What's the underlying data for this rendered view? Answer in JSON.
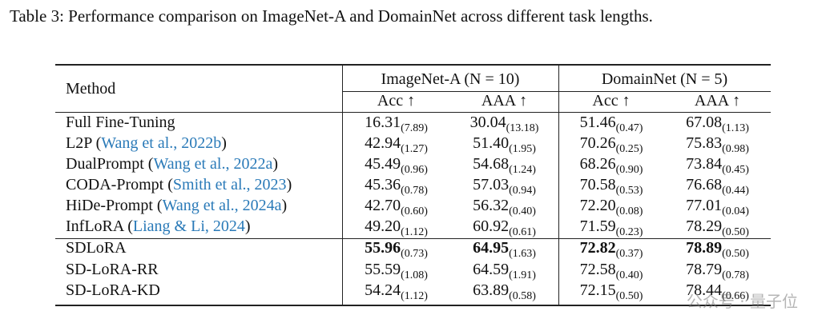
{
  "caption": "Table 3: Performance comparison on ImageNet-A and DomainNet across different task lengths.",
  "header": {
    "method": "Method",
    "group1": "ImageNet-A (N = 10)",
    "group2": "DomainNet (N = 5)",
    "acc": "Acc ↑",
    "aaa": "AAA ↑"
  },
  "rows": [
    {
      "method": "Full Fine-Tuning",
      "cite": "",
      "pre": "",
      "post": "",
      "v": [
        "16.31",
        "30.04",
        "51.46",
        "67.08"
      ],
      "s": [
        "(7.89)",
        "(13.18)",
        "(0.47)",
        "(1.13)"
      ],
      "bold": false
    },
    {
      "method": "L2P (",
      "cite": "Wang et al., 2022b",
      "post": ")",
      "v": [
        "42.94",
        "51.40",
        "70.26",
        "75.83"
      ],
      "s": [
        "(1.27)",
        "(1.95)",
        "(0.25)",
        "(0.98)"
      ],
      "bold": false
    },
    {
      "method": "DualPrompt (",
      "cite": "Wang et al., 2022a",
      "post": ")",
      "v": [
        "45.49",
        "54.68",
        "68.26",
        "73.84"
      ],
      "s": [
        "(0.96)",
        "(1.24)",
        "(0.90)",
        "(0.45)"
      ],
      "bold": false
    },
    {
      "method": "CODA-Prompt (",
      "cite": "Smith et al., 2023",
      "post": ")",
      "v": [
        "45.36",
        "57.03",
        "70.58",
        "76.68"
      ],
      "s": [
        "(0.78)",
        "(0.94)",
        "(0.53)",
        "(0.44)"
      ],
      "bold": false
    },
    {
      "method": "HiDe-Prompt (",
      "cite": "Wang et al., 2024a",
      "post": ")",
      "v": [
        "42.70",
        "56.32",
        "72.20",
        "77.01"
      ],
      "s": [
        "(0.60)",
        "(0.40)",
        "(0.08)",
        "(0.04)"
      ],
      "bold": false
    },
    {
      "method": "InfLoRA (",
      "cite": "Liang & Li, 2024",
      "post": ")",
      "v": [
        "49.20",
        "60.92",
        "71.59",
        "78.29"
      ],
      "s": [
        "(1.12)",
        "(0.61)",
        "(0.23)",
        "(0.50)"
      ],
      "bold": false
    },
    {
      "method": "SDLoRA",
      "cite": "",
      "post": "",
      "v": [
        "55.96",
        "64.95",
        "72.82",
        "78.89"
      ],
      "s": [
        "(0.73)",
        "(1.63)",
        "(0.37)",
        "(0.50)"
      ],
      "bold": true
    },
    {
      "method": "SD-LoRA-RR",
      "cite": "",
      "post": "",
      "v": [
        "55.59",
        "64.59",
        "72.58",
        "78.79"
      ],
      "s": [
        "(1.08)",
        "(1.91)",
        "(0.40)",
        "(0.78)"
      ],
      "bold": false
    },
    {
      "method": "SD-LoRA-KD",
      "cite": "",
      "post": "",
      "v": [
        "54.24",
        "63.89",
        "72.15",
        "78.44"
      ],
      "s": [
        "(1.12)",
        "(0.58)",
        "(0.50)",
        "(0.66)"
      ],
      "bold": false
    }
  ],
  "watermark": "公众号 · 量子位"
}
